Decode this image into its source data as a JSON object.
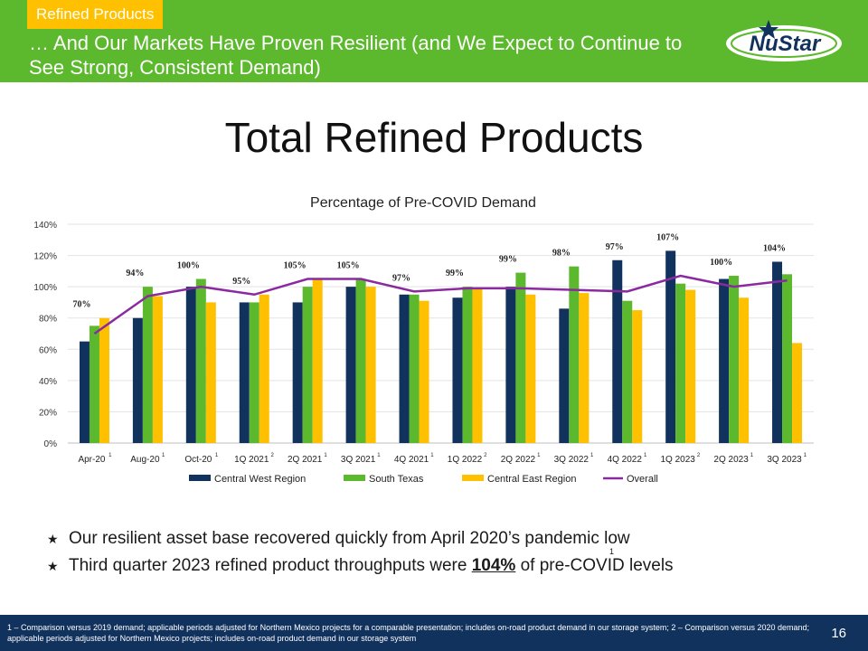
{
  "header": {
    "tag": "Refined Products",
    "headline": "… And Our Markets Have Proven Resilient (and We Expect to Continue to See Strong, Consistent Demand)",
    "logo_text": "NuStar",
    "bg_color": "#5cb82c",
    "tag_color": "#ffc000"
  },
  "main_title": "Total Refined Products",
  "chart_data": {
    "type": "bar",
    "title": "Percentage of Pre-COVID Demand",
    "categories": [
      "Apr-20",
      "Aug-20",
      "Oct-20",
      "1Q 2021",
      "2Q 2021",
      "3Q 2021",
      "4Q 2021",
      "1Q 2022",
      "2Q 2022",
      "3Q 2022",
      "4Q 2022",
      "1Q 2023",
      "2Q 2023",
      "3Q 2023"
    ],
    "category_notes": [
      "1",
      "1",
      "1",
      "2",
      "1",
      "1",
      "1",
      "2",
      "1",
      "1",
      "1",
      "2",
      "1",
      "1"
    ],
    "series": [
      {
        "name": "Central West Region",
        "color": "#12325e",
        "values": [
          65,
          80,
          100,
          90,
          90,
          100,
          95,
          93,
          100,
          86,
          117,
          123,
          105,
          116
        ]
      },
      {
        "name": "South Texas",
        "color": "#5cb82c",
        "values": [
          75,
          100,
          105,
          90,
          100,
          105,
          95,
          100,
          109,
          113,
          91,
          102,
          107,
          108
        ]
      },
      {
        "name": "Central East Region",
        "color": "#ffc000",
        "values": [
          80,
          94,
          90,
          95,
          105,
          100,
          91,
          99,
          95,
          96,
          85,
          98,
          93,
          64
        ]
      }
    ],
    "line_series": {
      "name": "Overall",
      "color": "#8b2aa0",
      "type": "line",
      "values": [
        70,
        94,
        100,
        95,
        105,
        105,
        97,
        99,
        99,
        98,
        97,
        107,
        100,
        104
      ]
    },
    "data_labels": [
      "70%",
      "94%",
      "100%",
      "95%",
      "105%",
      "105%",
      "97%",
      "99%",
      "99%",
      "98%",
      "97%",
      "107%",
      "100%",
      "104%"
    ],
    "y_ticks": [
      "0%",
      "20%",
      "40%",
      "60%",
      "80%",
      "100%",
      "120%",
      "140%"
    ],
    "ylim": [
      0,
      140
    ],
    "xlabel": "",
    "ylabel": "",
    "grid": true,
    "legend": "bottom"
  },
  "bullets": {
    "b1": "Our resilient asset base recovered quickly from April 2020’s pandemic low",
    "b2_pre": "Third quarter 2023 refined product throughputs were ",
    "b2_highlight": "104%",
    "b2_post": " of pre-COVID levels",
    "b2_note": "1"
  },
  "footer": {
    "footnote": "1 – Comparison versus 2019 demand; applicable periods adjusted for Northern Mexico projects for a comparable presentation; includes on-road product demand in our storage system;  2 – Comparison versus 2020 demand; applicable periods adjusted for Northern Mexico projects; includes on-road product demand in our storage system",
    "page_number": "16"
  }
}
